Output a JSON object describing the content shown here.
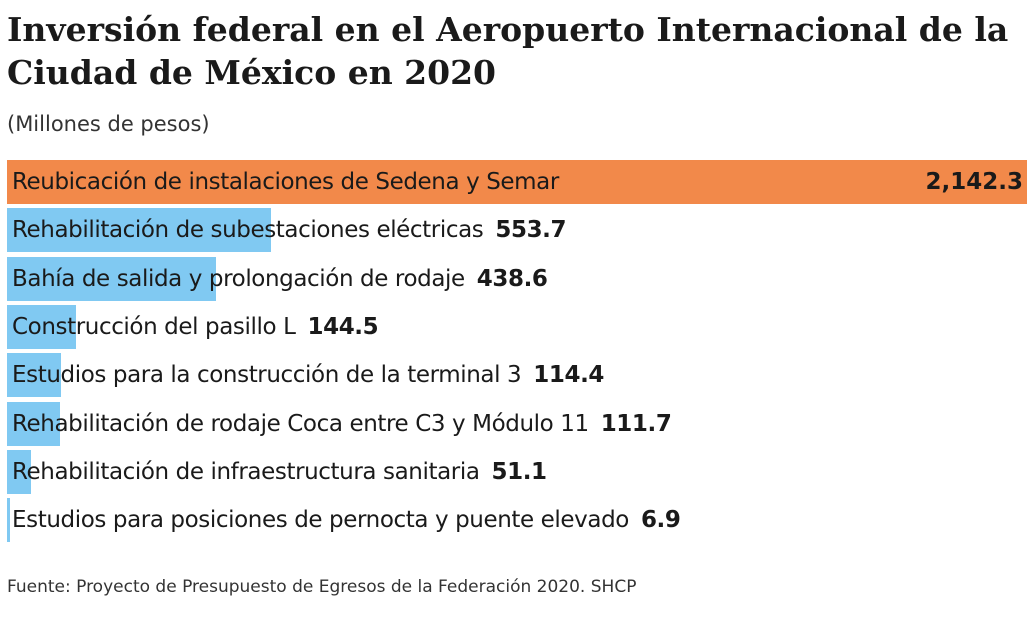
{
  "chart_data": {
    "type": "bar",
    "orientation": "horizontal",
    "title": "Inversión federal en el Aeropuerto Internacional de la Ciudad de México en 2020",
    "subtitle": "(Millones de pesos)",
    "categories": [
      "Reubicación de instalaciones de Sedena y Semar",
      "Rehabilitación de subestaciones eléctricas",
      "Bahía de salida y prolongación de rodaje",
      "Construcción del pasillo L",
      "Estudios para la construcción de la terminal 3",
      "Rehabilitación de rodaje Coca entre C3 y Módulo 11",
      "Rehabilitación de infraestructura sanitaria",
      "Estudios para posiciones de pernocta y puente elevado"
    ],
    "values": [
      2142.3,
      553.7,
      438.6,
      144.5,
      114.4,
      111.7,
      51.1,
      6.9
    ],
    "value_labels": [
      "2,142.3",
      "553.7",
      "438.6",
      "144.5",
      "114.4",
      "111.7",
      "51.1",
      "6.9"
    ],
    "colors": {
      "highlight": "#f2894a",
      "default": "#80c9f2"
    },
    "xlim": [
      0,
      2142.3
    ],
    "grid": false,
    "source": "Fuente: Proyecto de Presupuesto de Egresos de la Federación 2020. SHCP"
  }
}
